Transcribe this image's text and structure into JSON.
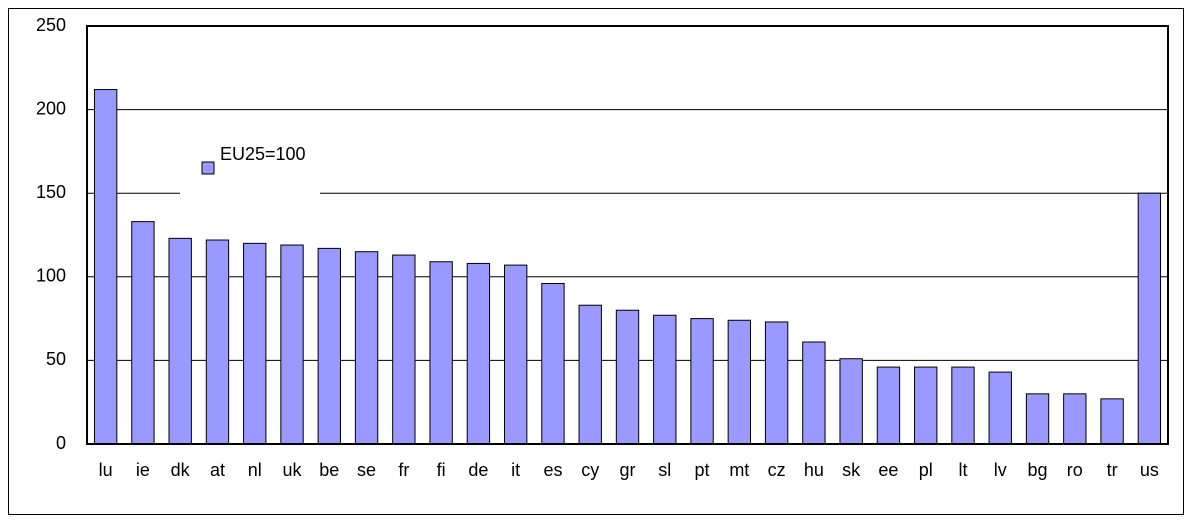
{
  "chart_data": {
    "type": "bar",
    "categories": [
      "lu",
      "ie",
      "dk",
      "at",
      "nl",
      "uk",
      "be",
      "se",
      "fr",
      "fi",
      "de",
      "it",
      "es",
      "cy",
      "gr",
      "sl",
      "pt",
      "mt",
      "cz",
      "hu",
      "sk",
      "ee",
      "pl",
      "lt",
      "lv",
      "bg",
      "ro",
      "tr",
      "us"
    ],
    "series": [
      {
        "name": "EU25=100",
        "color": "#9999ff",
        "values": [
          212,
          133,
          123,
          122,
          120,
          119,
          117,
          115,
          113,
          109,
          108,
          107,
          96,
          83,
          80,
          77,
          75,
          74,
          73,
          61,
          51,
          46,
          46,
          46,
          43,
          30,
          30,
          27,
          150
        ]
      }
    ],
    "ylim": [
      0,
      250
    ],
    "yticks": [
      0,
      50,
      100,
      150,
      200,
      250
    ],
    "grid": true,
    "legend": "upper left"
  }
}
